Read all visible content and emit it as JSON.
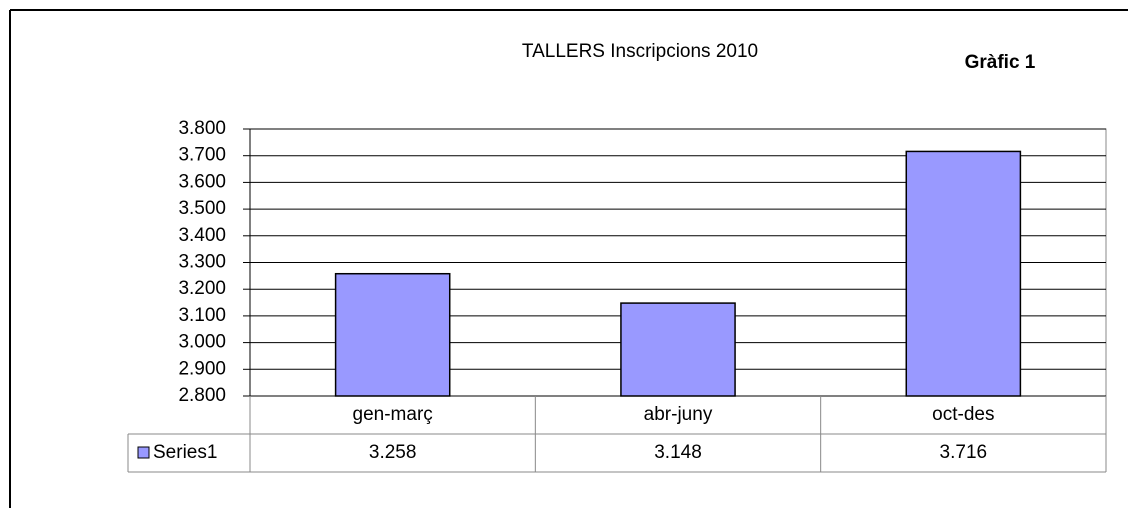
{
  "chart_data": {
    "type": "bar",
    "title": "TALLERS Inscripcions 2010",
    "annotation": "Gràfic 1",
    "categories": [
      "gen-març",
      "abr-juny",
      "oct-des"
    ],
    "series": [
      {
        "name": "Series1",
        "color": "#9999ff",
        "values": [
          3258,
          3148,
          3716
        ],
        "value_labels": [
          "3.258",
          "3.148",
          "3.716"
        ]
      }
    ],
    "ylim": [
      2800,
      3800
    ],
    "yticks": [
      {
        "value": 2800,
        "label": "2.800"
      },
      {
        "value": 2900,
        "label": "2.900"
      },
      {
        "value": 3000,
        "label": "3.000"
      },
      {
        "value": 3100,
        "label": "3.100"
      },
      {
        "value": 3200,
        "label": "3.200"
      },
      {
        "value": 3300,
        "label": "3.300"
      },
      {
        "value": 3400,
        "label": "3.400"
      },
      {
        "value": 3500,
        "label": "3.500"
      },
      {
        "value": 3600,
        "label": "3.600"
      },
      {
        "value": 3700,
        "label": "3.700"
      },
      {
        "value": 3800,
        "label": "3.800"
      }
    ],
    "grid": true,
    "data_table": true
  }
}
